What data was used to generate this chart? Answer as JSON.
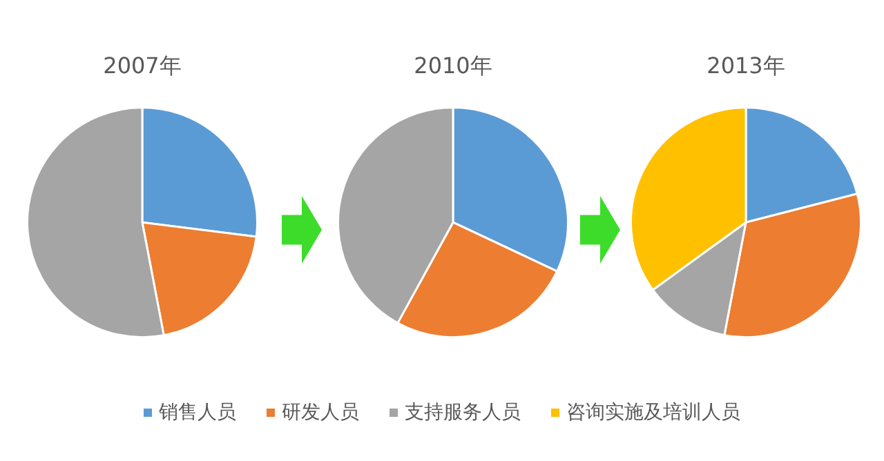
{
  "chart_data": [
    {
      "type": "pie",
      "title": "2007年",
      "categories": [
        null,
        null,
        null
      ],
      "values": [
        27,
        20,
        53
      ],
      "colors": [
        "#5b9bd5",
        "#ed7d31",
        "#a5a5a5"
      ]
    },
    {
      "type": "pie",
      "title": "2010年",
      "categories": [
        null,
        null,
        null
      ],
      "values": [
        32,
        26,
        42
      ],
      "colors": [
        "#5b9bd5",
        "#ed7d31",
        "#a5a5a5"
      ]
    },
    {
      "type": "pie",
      "title": "2013年",
      "categories": [
        "销售人员",
        "研发人员",
        "支持服务人员",
        "咨询实施及培训人员"
      ],
      "values": [
        21,
        32,
        12,
        35
      ],
      "colors": [
        "#5b9bd5",
        "#ed7d31",
        "#a5a5a5",
        "#ffc000"
      ],
      "legend": "bottom"
    }
  ]
}
